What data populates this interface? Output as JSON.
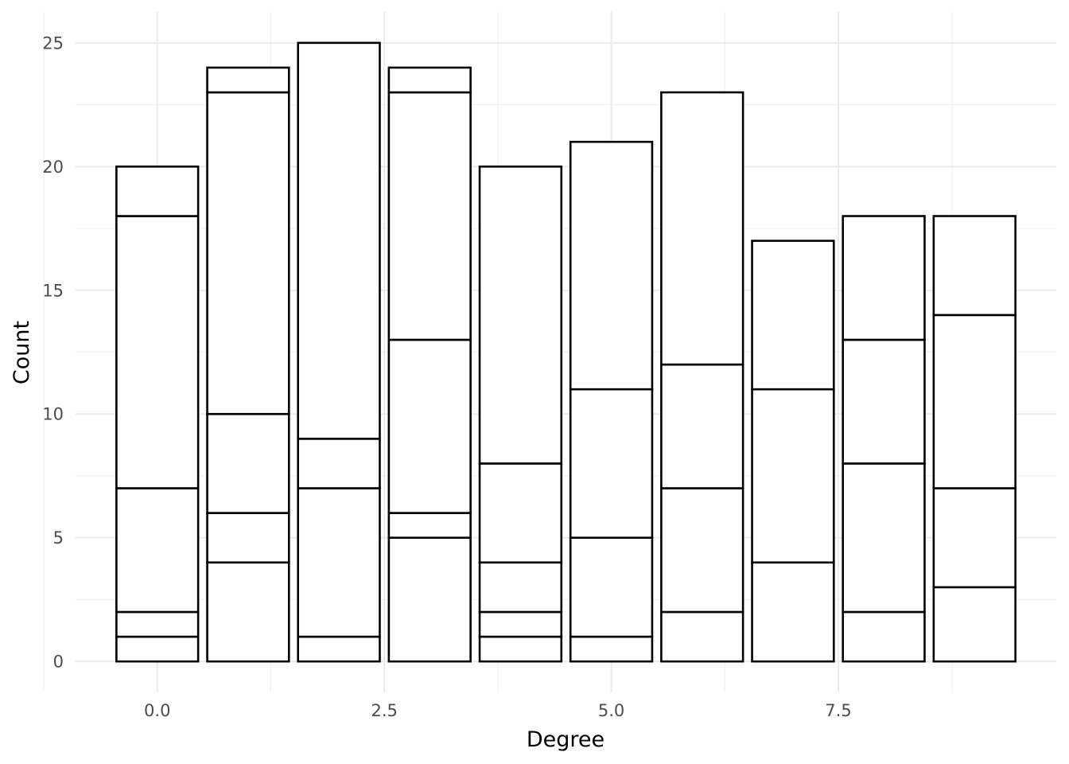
{
  "chart_data": {
    "type": "bar",
    "stacked": true,
    "xlabel": "Degree",
    "ylabel": "Count",
    "xlim": [
      -0.9,
      9.9
    ],
    "ylim": [
      -1.25,
      26.25
    ],
    "x_ticks": [
      {
        "value": 0,
        "label": "0.0"
      },
      {
        "value": 2.5,
        "label": "2.5"
      },
      {
        "value": 5,
        "label": "5.0"
      },
      {
        "value": 7.5,
        "label": "7.5"
      }
    ],
    "y_ticks": [
      {
        "value": 0,
        "label": "0"
      },
      {
        "value": 5,
        "label": "5"
      },
      {
        "value": 10,
        "label": "10"
      },
      {
        "value": 15,
        "label": "15"
      },
      {
        "value": 20,
        "label": "20"
      },
      {
        "value": 25,
        "label": "25"
      }
    ],
    "grid": true,
    "fill_color": "#ffffff",
    "outline_color": "#000000",
    "bars": [
      {
        "x": 0,
        "total": 20,
        "segment_boundaries": [
          0,
          1,
          2,
          7,
          18,
          20
        ]
      },
      {
        "x": 1,
        "total": 24,
        "segment_boundaries": [
          0,
          4,
          6,
          10,
          23,
          24
        ]
      },
      {
        "x": 2,
        "total": 25,
        "segment_boundaries": [
          0,
          1,
          7,
          9,
          25
        ]
      },
      {
        "x": 3,
        "total": 24,
        "segment_boundaries": [
          0,
          5,
          6,
          13,
          23,
          24
        ]
      },
      {
        "x": 4,
        "total": 20,
        "segment_boundaries": [
          0,
          1,
          2,
          4,
          8,
          20
        ]
      },
      {
        "x": 5,
        "total": 21,
        "segment_boundaries": [
          0,
          1,
          5,
          11,
          21
        ]
      },
      {
        "x": 6,
        "total": 23,
        "segment_boundaries": [
          0,
          2,
          7,
          12,
          23
        ]
      },
      {
        "x": 7,
        "total": 17,
        "segment_boundaries": [
          0,
          4,
          11,
          17
        ]
      },
      {
        "x": 8,
        "total": 18,
        "segment_boundaries": [
          0,
          2,
          8,
          13,
          18
        ]
      },
      {
        "x": 9,
        "total": 18,
        "segment_boundaries": [
          0,
          3,
          7,
          14,
          18
        ]
      }
    ]
  }
}
